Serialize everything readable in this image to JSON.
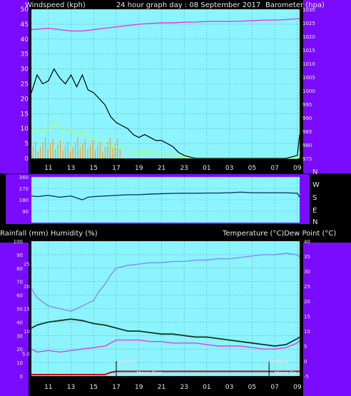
{
  "header": {
    "left": "Windspeed (kph)",
    "center": "24 hour graph day : 08 September 2017",
    "right": "Barometer (hpa)"
  },
  "middle_header": {
    "left": "Rainfall (mm)  Humidity (%)",
    "right": "Temperature (°C)Dew Point (°C)"
  },
  "compass": [
    "N",
    "W",
    "S",
    "E",
    "N"
  ],
  "colors": {
    "panel_bg": "#8cf4ff",
    "frame": "#7b0bff",
    "gust": "#000000",
    "avg_wind": "#a6ff7a",
    "wind_dir_bar": "#ff9a1a",
    "pressure": "#e03cf0",
    "direction_line": "#0b3d6e",
    "humidity": "#7f8dff",
    "temperature": "#0f3a22",
    "dewpoint": "#e03cf0",
    "rain": "#cc0000"
  },
  "annotations": {
    "sunset": "SunSet",
    "sunrise": "SunRise",
    "moonrise": "Moon Rise",
    "moonset": "Moon Se"
  },
  "chart_data": [
    {
      "type": "line",
      "name": "wind_pressure",
      "x_ticks": [
        "11",
        "13",
        "15",
        "17",
        "19",
        "21",
        "23",
        "01",
        "03",
        "05",
        "07",
        "09"
      ],
      "y_left_ticks": [
        "0",
        "5",
        "10",
        "15",
        "20",
        "25",
        "30",
        "35",
        "40",
        "45",
        "50"
      ],
      "y_left_range": [
        0,
        50
      ],
      "y_right_ticks": [
        "975",
        "980",
        "985",
        "990",
        "995",
        "1000",
        "1005",
        "1010",
        "1015",
        "1020",
        "1025",
        "1030"
      ],
      "y_right_range": [
        975,
        1030
      ],
      "grid": true,
      "gust_points": [
        [
          9.5,
          22
        ],
        [
          10,
          28
        ],
        [
          10.5,
          25
        ],
        [
          11,
          26
        ],
        [
          11.5,
          30
        ],
        [
          12,
          27
        ],
        [
          12.5,
          25
        ],
        [
          13,
          28
        ],
        [
          13.5,
          24
        ],
        [
          14,
          28
        ],
        [
          14.5,
          23
        ],
        [
          15,
          22
        ],
        [
          15.5,
          20
        ],
        [
          16,
          18
        ],
        [
          16.5,
          14
        ],
        [
          17,
          12
        ],
        [
          17.5,
          11
        ],
        [
          18,
          10
        ],
        [
          18.5,
          8
        ],
        [
          19,
          7
        ],
        [
          19.5,
          8
        ],
        [
          20,
          7
        ],
        [
          20.5,
          6
        ],
        [
          21,
          6
        ],
        [
          21.5,
          5
        ],
        [
          22,
          4
        ],
        [
          22.5,
          2
        ],
        [
          23,
          1
        ],
        [
          23.5,
          0.5
        ],
        [
          24,
          0
        ],
        [
          25,
          0
        ],
        [
          26,
          0
        ],
        [
          27,
          0
        ],
        [
          28,
          0
        ],
        [
          29,
          0
        ],
        [
          30,
          0
        ],
        [
          31,
          0
        ],
        [
          32,
          0
        ],
        [
          33,
          1
        ],
        [
          33.2,
          8
        ]
      ],
      "avg_points": [
        [
          9.5,
          8
        ],
        [
          10,
          10
        ],
        [
          10.5,
          9
        ],
        [
          11,
          10
        ],
        [
          11.5,
          12
        ],
        [
          12,
          10
        ],
        [
          12.5,
          9
        ],
        [
          13,
          10
        ],
        [
          13.5,
          8
        ],
        [
          14,
          9
        ],
        [
          14.5,
          7
        ],
        [
          15,
          7
        ],
        [
          15.5,
          6
        ],
        [
          16,
          5
        ],
        [
          16.5,
          4
        ],
        [
          17,
          4
        ],
        [
          17.5,
          3
        ],
        [
          18,
          3
        ],
        [
          18.5,
          2
        ],
        [
          19,
          2
        ],
        [
          20,
          2
        ],
        [
          21,
          1.5
        ],
        [
          22,
          1
        ],
        [
          23,
          0.5
        ],
        [
          24,
          0
        ],
        [
          33,
          0
        ],
        [
          33.2,
          2
        ]
      ],
      "pressure_points": [
        [
          9.5,
          1022.5
        ],
        [
          11,
          1023
        ],
        [
          12,
          1022.5
        ],
        [
          13,
          1022
        ],
        [
          14,
          1022
        ],
        [
          15,
          1022.5
        ],
        [
          16,
          1023
        ],
        [
          17,
          1023.5
        ],
        [
          18,
          1024
        ],
        [
          19,
          1024.5
        ],
        [
          20,
          1024.8
        ],
        [
          21,
          1025
        ],
        [
          22,
          1025
        ],
        [
          23,
          1025.2
        ],
        [
          24,
          1025.3
        ],
        [
          25,
          1025.5
        ],
        [
          26,
          1025.5
        ],
        [
          27,
          1025.5
        ],
        [
          28,
          1025.6
        ],
        [
          29,
          1025.8
        ],
        [
          30,
          1026
        ],
        [
          31,
          1026
        ],
        [
          32,
          1026.2
        ],
        [
          33,
          1026.5
        ],
        [
          33.2,
          1026.5
        ]
      ]
    },
    {
      "type": "line",
      "name": "wind_direction",
      "y_ticks": [
        "360",
        "270",
        "180",
        "90"
      ],
      "y_range": [
        0,
        360
      ],
      "points": [
        [
          9.5,
          210
        ],
        [
          10,
          205
        ],
        [
          11,
          215
        ],
        [
          12,
          200
        ],
        [
          13,
          210
        ],
        [
          14,
          180
        ],
        [
          14.5,
          200
        ],
        [
          15,
          205
        ],
        [
          16,
          210
        ],
        [
          17,
          215
        ],
        [
          18,
          220
        ],
        [
          19,
          220
        ],
        [
          20,
          225
        ],
        [
          21,
          228
        ],
        [
          22,
          230
        ],
        [
          23,
          232
        ],
        [
          24,
          232
        ],
        [
          25,
          233
        ],
        [
          26,
          233
        ],
        [
          27,
          235
        ],
        [
          28,
          240
        ],
        [
          29,
          235
        ],
        [
          30,
          235
        ],
        [
          31,
          235
        ],
        [
          32,
          235
        ],
        [
          33,
          232
        ],
        [
          33.2,
          200
        ]
      ]
    },
    {
      "type": "line",
      "name": "temp_humidity_rain",
      "y_left_ticks": [
        "0",
        "10",
        "20",
        "30",
        "40",
        "50",
        "60",
        "70",
        "80",
        "90",
        "100"
      ],
      "y_left_range": [
        0,
        100
      ],
      "y_left_alt_ticks": [
        "5.0",
        "10",
        "15",
        "20",
        "25"
      ],
      "y_right_ticks": [
        "-5",
        "0",
        "5",
        "10",
        "15",
        "20",
        "25",
        "30",
        "35",
        "40"
      ],
      "y_right_range": [
        -5,
        40
      ],
      "humidity_points": [
        [
          9.5,
          65
        ],
        [
          10,
          58
        ],
        [
          11,
          52
        ],
        [
          12,
          50
        ],
        [
          13,
          48
        ],
        [
          14,
          52
        ],
        [
          15,
          56
        ],
        [
          15.5,
          63
        ],
        [
          16,
          68
        ],
        [
          16.5,
          75
        ],
        [
          17,
          80
        ],
        [
          18,
          82
        ],
        [
          19,
          83
        ],
        [
          20,
          84
        ],
        [
          21,
          84
        ],
        [
          22,
          85
        ],
        [
          23,
          85
        ],
        [
          24,
          86
        ],
        [
          25,
          86
        ],
        [
          26,
          87
        ],
        [
          27,
          87
        ],
        [
          28,
          88
        ],
        [
          29,
          89
        ],
        [
          30,
          90
        ],
        [
          31,
          90
        ],
        [
          32,
          91
        ],
        [
          33,
          90
        ],
        [
          33.2,
          88
        ]
      ],
      "temperature_points": [
        [
          9.5,
          11
        ],
        [
          10,
          12
        ],
        [
          11,
          13
        ],
        [
          12,
          13.5
        ],
        [
          13,
          14
        ],
        [
          14,
          13.5
        ],
        [
          15,
          12.5
        ],
        [
          16,
          12
        ],
        [
          17,
          11
        ],
        [
          18,
          10
        ],
        [
          19,
          10
        ],
        [
          20,
          9.5
        ],
        [
          21,
          9
        ],
        [
          22,
          9
        ],
        [
          23,
          8.5
        ],
        [
          24,
          8
        ],
        [
          25,
          8
        ],
        [
          26,
          7.5
        ],
        [
          27,
          7
        ],
        [
          28,
          6.5
        ],
        [
          29,
          6
        ],
        [
          30,
          5.5
        ],
        [
          31,
          5
        ],
        [
          32,
          5.5
        ],
        [
          33,
          7.5
        ],
        [
          33.2,
          8
        ]
      ],
      "dewpoint_points": [
        [
          9.5,
          4
        ],
        [
          10,
          3
        ],
        [
          11,
          3.5
        ],
        [
          12,
          3
        ],
        [
          13,
          3.5
        ],
        [
          14,
          4
        ],
        [
          15,
          4.5
        ],
        [
          16,
          5
        ],
        [
          16.5,
          6
        ],
        [
          17,
          7
        ],
        [
          18,
          7
        ],
        [
          19,
          7
        ],
        [
          20,
          6.5
        ],
        [
          21,
          6.5
        ],
        [
          22,
          6
        ],
        [
          23,
          6
        ],
        [
          24,
          6
        ],
        [
          25,
          5.5
        ],
        [
          26,
          5
        ],
        [
          27,
          5
        ],
        [
          28,
          5
        ],
        [
          29,
          4.5
        ],
        [
          30,
          4
        ],
        [
          31,
          4
        ],
        [
          32,
          4.5
        ],
        [
          33,
          6
        ],
        [
          33.2,
          7
        ]
      ],
      "rain_points": [
        [
          9.5,
          0
        ],
        [
          16,
          0
        ],
        [
          16.5,
          1
        ],
        [
          17,
          1.5
        ],
        [
          33.2,
          1.5
        ]
      ]
    }
  ]
}
